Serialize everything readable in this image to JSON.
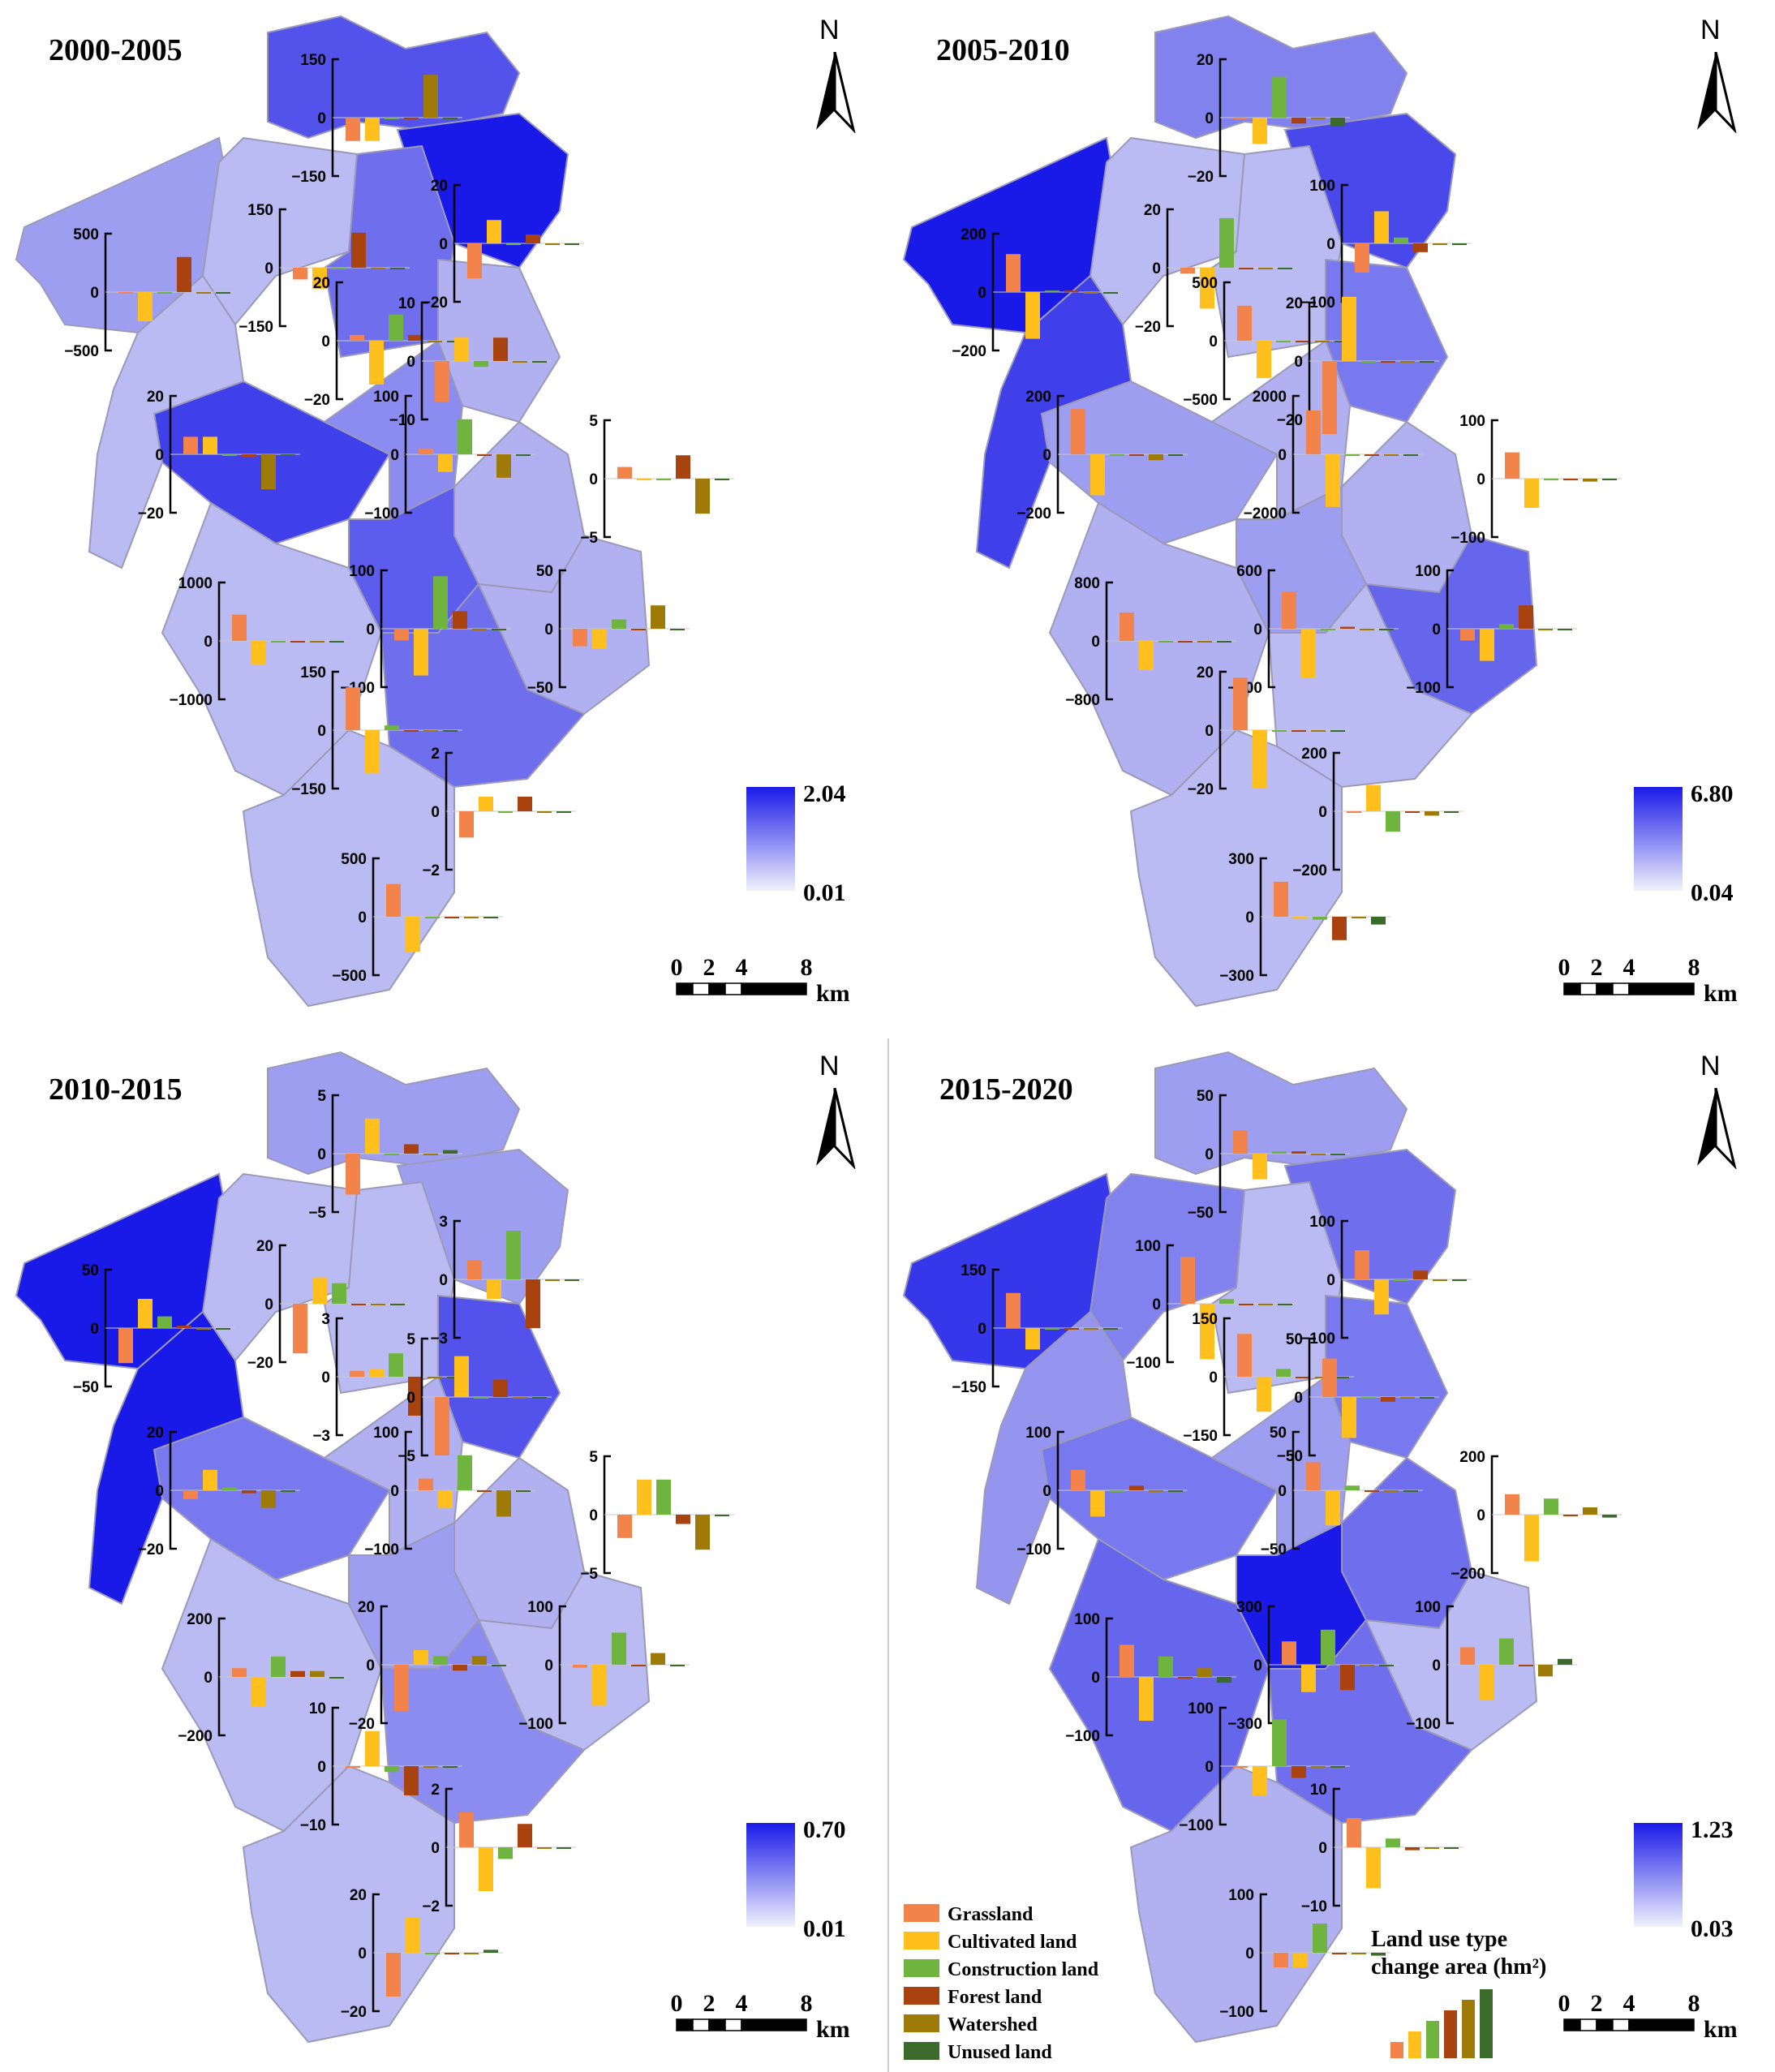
{
  "panels": [
    {
      "title": "2000-2005",
      "legend": {
        "max": "2.04",
        "min": "0.01"
      },
      "scale": {
        "ticks": [
          "0",
          "2",
          "4",
          "8"
        ],
        "unit": "km"
      },
      "north": "N",
      "regions": [
        {
          "ticks": [
            "150",
            "0",
            "−150"
          ],
          "values": [
            -60,
            -60,
            0,
            0,
            110,
            0
          ],
          "shade": 0.7
        },
        {
          "ticks": [
            "20",
            "0",
            "−20"
          ],
          "values": [
            -12,
            8,
            0,
            3,
            0,
            0
          ],
          "shade": 1.0
        },
        {
          "ticks": [
            "500",
            "0",
            "−500"
          ],
          "values": [
            0,
            -250,
            0,
            300,
            0,
            0
          ],
          "shade": 0.3
        },
        {
          "ticks": [
            "150",
            "0",
            "−150"
          ],
          "values": [
            -30,
            -55,
            0,
            90,
            0,
            0
          ],
          "shade": 0.15
        },
        {
          "ticks": [
            "20",
            "0",
            "−20"
          ],
          "values": [
            2,
            -15,
            9,
            2,
            0,
            0
          ],
          "shade": 0.55
        },
        {
          "ticks": [
            "10",
            "0",
            "−10"
          ],
          "values": [
            -7,
            4,
            -1,
            4,
            0,
            0
          ],
          "shade": 0.2
        },
        {
          "ticks": [
            "20",
            "0",
            "−20"
          ],
          "values": [
            6,
            6,
            0,
            -1,
            -12,
            0
          ],
          "shade": 0.8
        },
        {
          "ticks": [
            "100",
            "0",
            "−100"
          ],
          "values": [
            10,
            -30,
            60,
            0,
            -40,
            0
          ],
          "shade": 0.4
        },
        {
          "ticks": [
            "5",
            "0",
            "−5"
          ],
          "values": [
            1,
            0,
            0,
            2,
            -3,
            0
          ],
          "shade": 0.2
        },
        {
          "ticks": [
            "1000",
            "0",
            "−1000"
          ],
          "values": [
            450,
            -400,
            0,
            0,
            0,
            0
          ],
          "shade": 0.15
        },
        {
          "ticks": [
            "100",
            "0",
            "−100"
          ],
          "values": [
            -20,
            -80,
            90,
            30,
            0,
            0
          ],
          "shade": 0.65
        },
        {
          "ticks": [
            "50",
            "0",
            "−50"
          ],
          "values": [
            -15,
            -17,
            8,
            0,
            20,
            0
          ],
          "shade": 0.2
        },
        {
          "ticks": [
            "150",
            "0",
            "−150"
          ],
          "values": [
            110,
            -110,
            12,
            0,
            0,
            0
          ],
          "shade": 0.15
        },
        {
          "ticks": [
            "2",
            "0",
            "−2"
          ],
          "values": [
            -0.9,
            0.5,
            0,
            0.5,
            0,
            0
          ],
          "shade": 0.55
        },
        {
          "ticks": [
            "500",
            "0",
            "−500"
          ],
          "values": [
            280,
            -300,
            0,
            0,
            0,
            0
          ],
          "shade": 0.15
        }
      ]
    },
    {
      "title": "2005-2010",
      "legend": {
        "max": "6.80",
        "min": "0.04"
      },
      "scale": {
        "ticks": [
          "0",
          "2",
          "4",
          "8"
        ],
        "unit": "km"
      },
      "north": "N",
      "regions": [
        {
          "ticks": [
            "20",
            "0",
            "−20"
          ],
          "values": [
            0,
            -9,
            14,
            -2,
            0,
            -3
          ],
          "shade": 0.45
        },
        {
          "ticks": [
            "100",
            "0",
            "−100"
          ],
          "values": [
            -50,
            55,
            10,
            -15,
            0,
            0
          ],
          "shade": 0.75
        },
        {
          "ticks": [
            "200",
            "0",
            "−200"
          ],
          "values": [
            130,
            -160,
            5,
            5,
            0,
            0
          ],
          "shade": 1.0
        },
        {
          "ticks": [
            "20",
            "0",
            "−20"
          ],
          "values": [
            -2,
            -14,
            17,
            0,
            0,
            0
          ],
          "shade": 0.15
        },
        {
          "ticks": [
            "500",
            "0",
            "−500"
          ],
          "values": [
            300,
            -320,
            0,
            0,
            0,
            0
          ],
          "shade": 0.15
        },
        {
          "ticks": [
            "20",
            "0",
            "−20"
          ],
          "values": [
            -25,
            22,
            0,
            0,
            0,
            0
          ],
          "shade": 0.5
        },
        {
          "ticks": [
            "200",
            "0",
            "−200"
          ],
          "values": [
            155,
            -140,
            0,
            0,
            -20,
            0
          ],
          "shade": 0.3
        },
        {
          "ticks": [
            "2000",
            "0",
            "−2000"
          ],
          "values": [
            1500,
            -1800,
            0,
            0,
            0,
            0
          ],
          "shade": 0.2
        },
        {
          "ticks": [
            "100",
            "0",
            "−100"
          ],
          "values": [
            45,
            -50,
            0,
            0,
            -5,
            0
          ],
          "shade": 0.2
        },
        {
          "ticks": [
            "800",
            "0",
            "−800"
          ],
          "values": [
            390,
            -400,
            0,
            0,
            0,
            0
          ],
          "shade": 0.8
        },
        {
          "ticks": [
            "600",
            "0",
            "−600"
          ],
          "values": [
            380,
            -500,
            0,
            20,
            0,
            0
          ],
          "shade": 0.3
        },
        {
          "ticks": [
            "100",
            "0",
            "−100"
          ],
          "values": [
            -20,
            -55,
            8,
            40,
            0,
            0
          ],
          "shade": 0.6
        },
        {
          "ticks": [
            "20",
            "0",
            "−20"
          ],
          "values": [
            18,
            -20,
            0,
            0,
            0,
            0
          ],
          "shade": 0.2
        },
        {
          "ticks": [
            "200",
            "0",
            "−200"
          ],
          "values": [
            -5,
            90,
            -70,
            0,
            -15,
            0
          ],
          "shade": 0.15
        },
        {
          "ticks": [
            "300",
            "0",
            "−300"
          ],
          "values": [
            180,
            -10,
            -15,
            -120,
            0,
            -40
          ],
          "shade": 0.15
        }
      ]
    },
    {
      "title": "2010-2015",
      "legend": {
        "max": "0.70",
        "min": "0.01"
      },
      "scale": {
        "ticks": [
          "0",
          "2",
          "4",
          "8"
        ],
        "unit": "km"
      },
      "north": "N",
      "regions": [
        {
          "ticks": [
            "5",
            "0",
            "−5"
          ],
          "values": [
            -3.5,
            3,
            0,
            0.8,
            0,
            0.3
          ],
          "shade": 0.3
        },
        {
          "ticks": [
            "3",
            "0",
            "−3"
          ],
          "values": [
            1,
            -1,
            2.5,
            -2.5,
            0,
            0
          ],
          "shade": 0.3
        },
        {
          "ticks": [
            "50",
            "0",
            "−50"
          ],
          "values": [
            -30,
            25,
            10,
            2,
            0,
            0
          ],
          "shade": 1.0
        },
        {
          "ticks": [
            "20",
            "0",
            "−20"
          ],
          "values": [
            -17,
            9,
            7,
            0,
            0,
            0
          ],
          "shade": 0.15
        },
        {
          "ticks": [
            "3",
            "0",
            "−3"
          ],
          "values": [
            0.3,
            0.4,
            1.2,
            -2,
            0,
            0
          ],
          "shade": 0.15
        },
        {
          "ticks": [
            "5",
            "0",
            "−5"
          ],
          "values": [
            -5,
            3.5,
            0,
            1.5,
            0,
            0
          ],
          "shade": 0.7
        },
        {
          "ticks": [
            "20",
            "0",
            "−20"
          ],
          "values": [
            -3,
            7,
            1,
            -1,
            -6,
            0
          ],
          "shade": 0.5
        },
        {
          "ticks": [
            "100",
            "0",
            "−100"
          ],
          "values": [
            20,
            -30,
            60,
            0,
            -45,
            0
          ],
          "shade": 0.2
        },
        {
          "ticks": [
            "5",
            "0",
            "−5"
          ],
          "values": [
            -2,
            3,
            3,
            -0.8,
            -3,
            0
          ],
          "shade": 0.2
        },
        {
          "ticks": [
            "200",
            "0",
            "−200"
          ],
          "values": [
            30,
            -100,
            70,
            20,
            20,
            0
          ],
          "shade": 1.0
        },
        {
          "ticks": [
            "20",
            "0",
            "−20"
          ],
          "values": [
            -16,
            5,
            3,
            -2,
            3,
            0
          ],
          "shade": 0.3
        },
        {
          "ticks": [
            "100",
            "0",
            "−100"
          ],
          "values": [
            -5,
            -70,
            55,
            0,
            20,
            0
          ],
          "shade": 0.15
        },
        {
          "ticks": [
            "10",
            "0",
            "−10"
          ],
          "values": [
            0,
            6,
            -1,
            -5,
            0,
            0
          ],
          "shade": 0.15
        },
        {
          "ticks": [
            "2",
            "0",
            "−2"
          ],
          "values": [
            1.2,
            -1.5,
            -0.4,
            0.8,
            0,
            0
          ],
          "shade": 0.4
        },
        {
          "ticks": [
            "20",
            "0",
            "−20"
          ],
          "values": [
            -15,
            12,
            0,
            0,
            0,
            1
          ],
          "shade": 0.15
        }
      ]
    },
    {
      "title": "2015-2020",
      "legend": {
        "max": "1.23",
        "min": "0.03"
      },
      "scale": {
        "ticks": [
          "0",
          "2",
          "4",
          "8"
        ],
        "unit": "km"
      },
      "north": "N",
      "regions": [
        {
          "ticks": [
            "50",
            "0",
            "−50"
          ],
          "values": [
            20,
            -22,
            2,
            2,
            0,
            0
          ],
          "shade": 0.3
        },
        {
          "ticks": [
            "100",
            "0",
            "−100"
          ],
          "values": [
            50,
            -60,
            0,
            15,
            0,
            0
          ],
          "shade": 0.55
        },
        {
          "ticks": [
            "150",
            "0",
            "−150"
          ],
          "values": [
            90,
            -55,
            0,
            0,
            0,
            0
          ],
          "shade": 0.85
        },
        {
          "ticks": [
            "100",
            "0",
            "−100"
          ],
          "values": [
            80,
            -95,
            8,
            0,
            0,
            0
          ],
          "shade": 0.45
        },
        {
          "ticks": [
            "150",
            "0",
            "−150"
          ],
          "values": [
            110,
            -90,
            20,
            0,
            0,
            0
          ],
          "shade": 0.15
        },
        {
          "ticks": [
            "50",
            "0",
            "−50"
          ],
          "values": [
            33,
            -35,
            0,
            -4,
            0,
            0
          ],
          "shade": 0.5
        },
        {
          "ticks": [
            "100",
            "0",
            "−100"
          ],
          "values": [
            35,
            -45,
            0,
            8,
            0,
            0
          ],
          "shade": 0.5
        },
        {
          "ticks": [
            "50",
            "0",
            "−50"
          ],
          "values": [
            24,
            -30,
            4,
            -1,
            0,
            0
          ],
          "shade": 0.3
        },
        {
          "ticks": [
            "200",
            "0",
            "−200"
          ],
          "values": [
            70,
            -160,
            55,
            0,
            25,
            -10
          ],
          "shade": 0.55
        },
        {
          "ticks": [
            "100",
            "0",
            "−100"
          ],
          "values": [
            55,
            -75,
            35,
            0,
            15,
            -10
          ],
          "shade": 0.35
        },
        {
          "ticks": [
            "300",
            "0",
            "−300"
          ],
          "values": [
            120,
            -140,
            180,
            -130,
            0,
            0
          ],
          "shade": 1.0
        },
        {
          "ticks": [
            "100",
            "0",
            "−100"
          ],
          "values": [
            30,
            -60,
            45,
            0,
            -20,
            10
          ],
          "shade": 0.15
        },
        {
          "ticks": [
            "100",
            "0",
            "−100"
          ],
          "values": [
            0,
            -50,
            80,
            -20,
            0,
            0
          ],
          "shade": 0.6
        },
        {
          "ticks": [
            "10",
            "0",
            "−10"
          ],
          "values": [
            5,
            -7,
            1.5,
            -0.5,
            0,
            0
          ],
          "shade": 0.55
        },
        {
          "ticks": [
            "100",
            "0",
            "−100"
          ],
          "values": [
            -25,
            -25,
            50,
            0,
            0,
            -5
          ],
          "shade": 0.2
        }
      ],
      "types_legend": {
        "items": [
          "Grassland",
          "Cultivated land",
          "Construction land",
          "Forest land",
          "Watershed",
          "Unused land"
        ],
        "title_line1": "Land use type",
        "title_line2": "change area (hm²)"
      }
    }
  ],
  "colors": {
    "Grassland": "#F2834A",
    "Cultivated land": "#FFC01E",
    "Construction land": "#6FB43F",
    "Forest land": "#A8420F",
    "Watershed": "#9E7A08",
    "Unused land": "#3C6A2A",
    "shade_low": "#d7d7f5",
    "shade_high": "#1a1ae8",
    "boundary": "#9a9ab8"
  }
}
